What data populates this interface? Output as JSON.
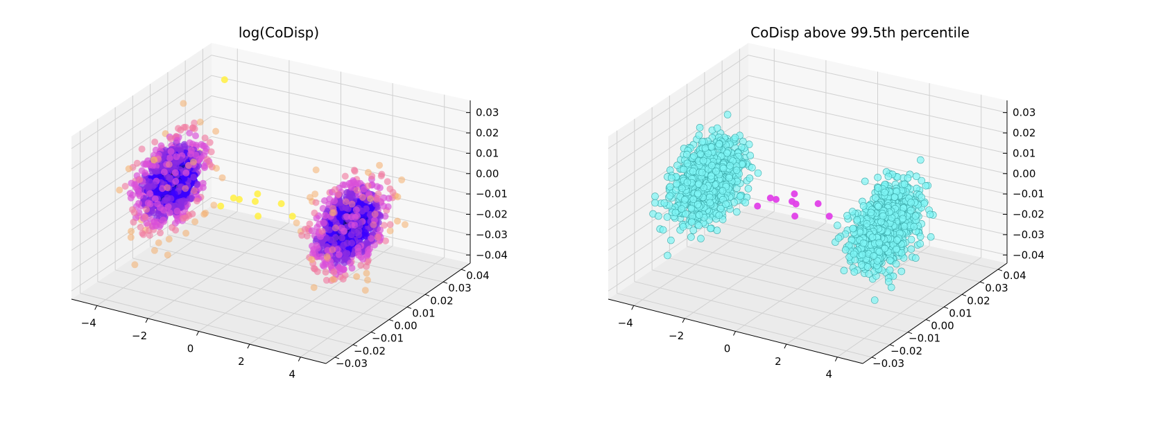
{
  "figure": {
    "panels": [
      {
        "title": "log(CoDisp)"
      },
      {
        "title": "CoDisp above 99.5th percentile"
      }
    ]
  },
  "chart_data": [
    {
      "type": "scatter",
      "title": "log(CoDisp)",
      "projection": "3d",
      "grid": true,
      "x_ticks": [
        "−4",
        "−2",
        "0",
        "2",
        "4"
      ],
      "y_ticks": [
        "−0.03",
        "−0.02",
        "−0.01",
        "0.00",
        "0.01",
        "0.02",
        "0.03",
        "0.04"
      ],
      "z_ticks": [
        "−0.04",
        "−0.03",
        "−0.02",
        "−0.01",
        "0.00",
        "0.01",
        "0.02",
        "0.03"
      ],
      "xlim": [
        -5,
        5
      ],
      "ylim": [
        -0.035,
        0.045
      ],
      "zlim": [
        -0.04,
        0.035
      ],
      "colormap": [
        "#000000",
        "#1a0dab",
        "#3b00ff",
        "#8a2be2",
        "#d94fd8",
        "#f07aa0",
        "#f5b070",
        "#fff04a",
        "#ffffff"
      ],
      "color_encoding": "log(CoDisp)",
      "clusters": [
        {
          "center": [
            -3.5,
            0.0,
            0.0
          ],
          "std": [
            0.35,
            0.008,
            0.008
          ],
          "count": 1000
        },
        {
          "center": [
            3.5,
            0.0,
            0.0
          ],
          "std": [
            0.35,
            0.008,
            0.008
          ],
          "count": 1000
        }
      ],
      "outliers": [
        [
          -0.9,
          -0.002,
          0.001
        ],
        [
          -0.3,
          0.003,
          0.002
        ],
        [
          0.2,
          -0.004,
          -0.003
        ],
        [
          -0.6,
          0.006,
          -0.004
        ],
        [
          0.7,
          0.002,
          0.001
        ],
        [
          -1.2,
          -0.005,
          -0.002
        ],
        [
          1.0,
          0.004,
          -0.005
        ],
        [
          -0.4,
          -0.006,
          0.004
        ],
        [
          -3.8,
          0.035,
          0.027
        ]
      ]
    },
    {
      "type": "scatter",
      "title": "CoDisp above 99.5th percentile",
      "projection": "3d",
      "grid": true,
      "x_ticks": [
        "−4",
        "−2",
        "0",
        "2",
        "4"
      ],
      "y_ticks": [
        "−0.03",
        "−0.02",
        "−0.01",
        "0.00",
        "0.01",
        "0.02",
        "0.03",
        "0.04"
      ],
      "z_ticks": [
        "−0.04",
        "−0.03",
        "−0.02",
        "−0.01",
        "0.00",
        "0.01",
        "0.02",
        "0.03"
      ],
      "xlim": [
        -5,
        5
      ],
      "ylim": [
        -0.035,
        0.045
      ],
      "zlim": [
        -0.04,
        0.035
      ],
      "colors": {
        "normal": "#7ff5f5",
        "normal_edge": "#3aa8a8",
        "anomaly": "#e040e8"
      },
      "clusters": [
        {
          "center": [
            -3.5,
            0.0,
            0.0
          ],
          "std": [
            0.35,
            0.008,
            0.008
          ],
          "count": 1000
        },
        {
          "center": [
            3.5,
            0.0,
            0.0
          ],
          "std": [
            0.35,
            0.008,
            0.008
          ],
          "count": 1000
        }
      ],
      "anomalies": [
        [
          -0.9,
          -0.002,
          0.001
        ],
        [
          -0.3,
          0.003,
          0.002
        ],
        [
          0.2,
          -0.004,
          -0.003
        ],
        [
          -0.6,
          0.006,
          -0.004
        ],
        [
          0.7,
          0.002,
          0.001
        ],
        [
          -1.2,
          -0.005,
          -0.002
        ],
        [
          1.0,
          0.004,
          -0.005
        ],
        [
          -0.4,
          -0.006,
          0.004
        ],
        [
          -0.1,
          0.001,
          -0.001
        ]
      ]
    }
  ]
}
